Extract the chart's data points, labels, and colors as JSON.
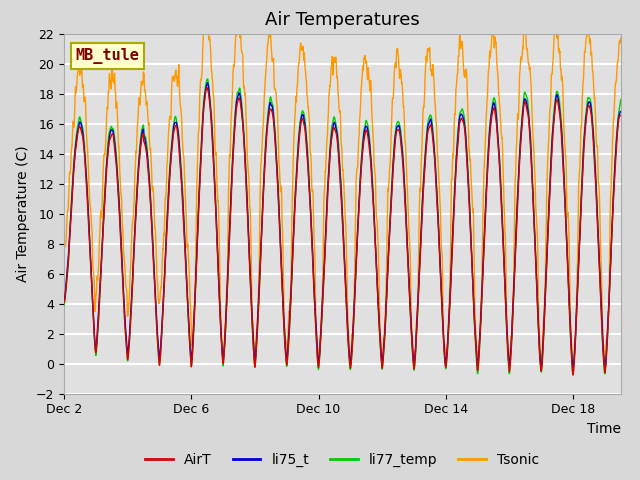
{
  "title": "Air Temperatures",
  "xlabel": "Time",
  "ylabel": "Air Temperature (C)",
  "ylim": [
    -2,
    22
  ],
  "xlim_days": [
    0,
    17.5
  ],
  "x_ticks_days": [
    0,
    4,
    8,
    12,
    16
  ],
  "x_tick_labels": [
    "Dec 2",
    "Dec 6",
    "Dec 10",
    "Dec 14",
    "Dec 18"
  ],
  "y_ticks": [
    -2,
    0,
    2,
    4,
    6,
    8,
    10,
    12,
    14,
    16,
    18,
    20,
    22
  ],
  "fig_bg_color": "#d8d8d8",
  "plot_bg_color": "#e0e0e0",
  "grid_color": "#ffffff",
  "colors": {
    "AirT": "#dd0000",
    "li75_t": "#0000dd",
    "li77_temp": "#00cc00",
    "Tsonic": "#ff9900"
  },
  "annotation_text": "MB_tule",
  "annotation_box_facecolor": "#ffffcc",
  "annotation_box_edgecolor": "#aaaa00",
  "annotation_text_color": "#800000",
  "title_fontsize": 13,
  "axis_label_fontsize": 10,
  "tick_fontsize": 9,
  "legend_fontsize": 10,
  "line_width": 1.0
}
